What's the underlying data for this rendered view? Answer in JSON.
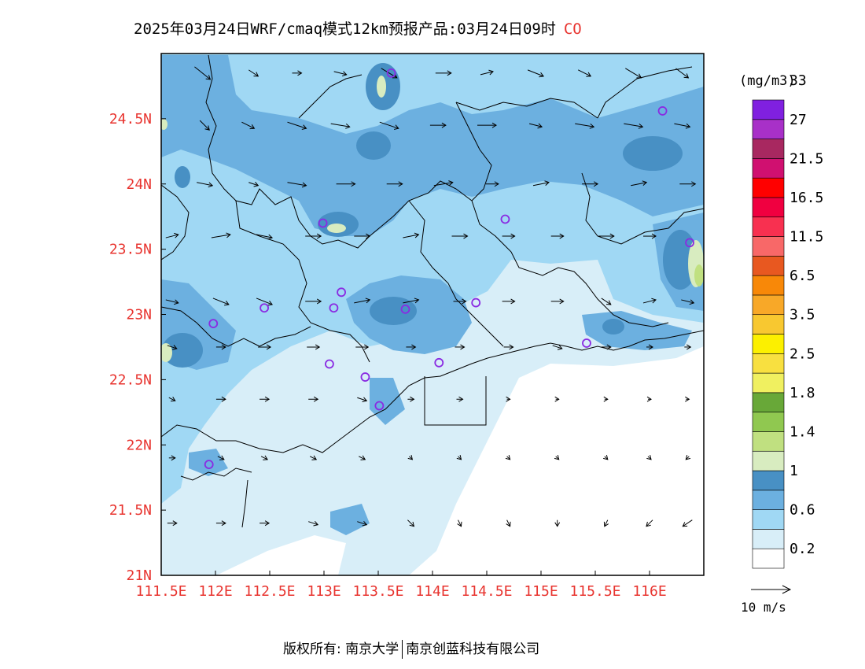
{
  "title": {
    "main": "2025年03月24日WRF/cmaq模式12km预报产品:03月24日09时",
    "species": "CO"
  },
  "map": {
    "lon_range": [
      111.5,
      116.5
    ],
    "lat_range": [
      21.0,
      25.0
    ],
    "lon_ticks": [
      "111.5E",
      "112E",
      "112.5E",
      "113E",
      "113.5E",
      "114E",
      "114.5E",
      "115E",
      "115.5E",
      "116E"
    ],
    "lat_ticks": [
      "21N",
      "21.5N",
      "22N",
      "22.5N",
      "23N",
      "23.5N",
      "24N",
      "24.5N"
    ],
    "tick_color": "#e8342f",
    "sea_color": "#ffffff",
    "stations": [
      [
        113.62,
        24.85
      ],
      [
        116.12,
        24.56
      ],
      [
        112.99,
        23.7
      ],
      [
        114.67,
        23.73
      ],
      [
        116.37,
        23.55
      ],
      [
        113.16,
        23.17
      ],
      [
        112.45,
        23.05
      ],
      [
        113.09,
        23.05
      ],
      [
        113.75,
        23.04
      ],
      [
        114.4,
        23.09
      ],
      [
        111.98,
        22.93
      ],
      [
        115.42,
        22.78
      ],
      [
        113.05,
        22.62
      ],
      [
        113.38,
        22.52
      ],
      [
        114.06,
        22.63
      ],
      [
        113.51,
        22.3
      ],
      [
        111.94,
        21.85
      ]
    ],
    "wind_vectors": [
      {
        "lon": 111.88,
        "lat": 24.85,
        "u": 5,
        "v": -4
      },
      {
        "lon": 112.35,
        "lat": 24.85,
        "u": 3,
        "v": -2
      },
      {
        "lon": 112.75,
        "lat": 24.85,
        "u": 3,
        "v": 0
      },
      {
        "lon": 113.15,
        "lat": 24.85,
        "u": 4,
        "v": -1
      },
      {
        "lon": 113.6,
        "lat": 24.85,
        "u": 5,
        "v": -3
      },
      {
        "lon": 114.1,
        "lat": 24.85,
        "u": 5,
        "v": 0
      },
      {
        "lon": 114.5,
        "lat": 24.85,
        "u": 4,
        "v": 1
      },
      {
        "lon": 114.95,
        "lat": 24.85,
        "u": 5,
        "v": -2
      },
      {
        "lon": 115.4,
        "lat": 24.85,
        "u": 4,
        "v": -2
      },
      {
        "lon": 115.85,
        "lat": 24.85,
        "u": 5,
        "v": -3
      },
      {
        "lon": 116.3,
        "lat": 24.85,
        "u": 4,
        "v": -3
      },
      {
        "lon": 111.9,
        "lat": 24.45,
        "u": 3,
        "v": -3
      },
      {
        "lon": 112.3,
        "lat": 24.45,
        "u": 4,
        "v": -2
      },
      {
        "lon": 112.75,
        "lat": 24.45,
        "u": 6,
        "v": -2
      },
      {
        "lon": 113.15,
        "lat": 24.45,
        "u": 6,
        "v": -1
      },
      {
        "lon": 113.6,
        "lat": 24.45,
        "u": 6,
        "v": -2
      },
      {
        "lon": 114.05,
        "lat": 24.45,
        "u": 5,
        "v": 0
      },
      {
        "lon": 114.5,
        "lat": 24.45,
        "u": 6,
        "v": 0
      },
      {
        "lon": 114.95,
        "lat": 24.45,
        "u": 4,
        "v": -1
      },
      {
        "lon": 115.4,
        "lat": 24.45,
        "u": 6,
        "v": -1
      },
      {
        "lon": 115.85,
        "lat": 24.45,
        "u": 6,
        "v": -1
      },
      {
        "lon": 116.3,
        "lat": 24.45,
        "u": 5,
        "v": -1
      },
      {
        "lon": 111.9,
        "lat": 24.0,
        "u": 5,
        "v": -1
      },
      {
        "lon": 112.35,
        "lat": 24.0,
        "u": 3,
        "v": -1
      },
      {
        "lon": 112.75,
        "lat": 24.0,
        "u": 6,
        "v": -1
      },
      {
        "lon": 113.2,
        "lat": 24.0,
        "u": 6,
        "v": 0
      },
      {
        "lon": 113.65,
        "lat": 24.0,
        "u": 5,
        "v": 0
      },
      {
        "lon": 114.1,
        "lat": 24.0,
        "u": 6,
        "v": 1
      },
      {
        "lon": 114.55,
        "lat": 24.0,
        "u": 4,
        "v": 0
      },
      {
        "lon": 115.0,
        "lat": 24.0,
        "u": 5,
        "v": 1
      },
      {
        "lon": 115.45,
        "lat": 24.0,
        "u": 5,
        "v": 0
      },
      {
        "lon": 115.9,
        "lat": 24.0,
        "u": 5,
        "v": 1
      },
      {
        "lon": 116.35,
        "lat": 24.0,
        "u": 5,
        "v": 0
      },
      {
        "lon": 111.6,
        "lat": 23.6,
        "u": 4,
        "v": 1
      },
      {
        "lon": 112.05,
        "lat": 23.6,
        "u": 6,
        "v": 1
      },
      {
        "lon": 112.45,
        "lat": 23.6,
        "u": 5,
        "v": -1
      },
      {
        "lon": 112.9,
        "lat": 23.6,
        "u": 5,
        "v": 0
      },
      {
        "lon": 113.35,
        "lat": 23.6,
        "u": 5,
        "v": 0
      },
      {
        "lon": 113.8,
        "lat": 23.6,
        "u": 5,
        "v": 1
      },
      {
        "lon": 114.25,
        "lat": 23.6,
        "u": 5,
        "v": 0
      },
      {
        "lon": 114.7,
        "lat": 23.6,
        "u": 4,
        "v": 0
      },
      {
        "lon": 115.15,
        "lat": 23.6,
        "u": 4,
        "v": 0
      },
      {
        "lon": 115.6,
        "lat": 23.6,
        "u": 5,
        "v": 0
      },
      {
        "lon": 116.0,
        "lat": 23.6,
        "u": 4,
        "v": 0
      },
      {
        "lon": 111.6,
        "lat": 23.1,
        "u": 4,
        "v": -1
      },
      {
        "lon": 112.05,
        "lat": 23.1,
        "u": 5,
        "v": -2
      },
      {
        "lon": 112.45,
        "lat": 23.1,
        "u": 5,
        "v": -2
      },
      {
        "lon": 112.9,
        "lat": 23.1,
        "u": 5,
        "v": 0
      },
      {
        "lon": 113.35,
        "lat": 23.1,
        "u": 5,
        "v": 1
      },
      {
        "lon": 113.8,
        "lat": 23.1,
        "u": 5,
        "v": 1
      },
      {
        "lon": 114.25,
        "lat": 23.1,
        "u": 4,
        "v": 0
      },
      {
        "lon": 114.7,
        "lat": 23.1,
        "u": 4,
        "v": 0
      },
      {
        "lon": 115.15,
        "lat": 23.1,
        "u": 4,
        "v": 0
      },
      {
        "lon": 115.6,
        "lat": 23.1,
        "u": 3,
        "v": -2
      },
      {
        "lon": 116.0,
        "lat": 23.1,
        "u": 4,
        "v": 1
      },
      {
        "lon": 116.35,
        "lat": 23.1,
        "u": 4,
        "v": -1
      },
      {
        "lon": 111.6,
        "lat": 22.75,
        "u": 3,
        "v": -1
      },
      {
        "lon": 112.05,
        "lat": 22.75,
        "u": 3,
        "v": 0
      },
      {
        "lon": 112.45,
        "lat": 22.75,
        "u": 4,
        "v": 0
      },
      {
        "lon": 112.9,
        "lat": 22.75,
        "u": 4,
        "v": 0
      },
      {
        "lon": 113.35,
        "lat": 22.75,
        "u": 4,
        "v": 0
      },
      {
        "lon": 113.8,
        "lat": 22.75,
        "u": 3,
        "v": 0
      },
      {
        "lon": 114.25,
        "lat": 22.75,
        "u": 3,
        "v": 0
      },
      {
        "lon": 114.7,
        "lat": 22.75,
        "u": 3,
        "v": 0
      },
      {
        "lon": 115.15,
        "lat": 22.75,
        "u": 3,
        "v": -1
      },
      {
        "lon": 115.6,
        "lat": 22.75,
        "u": 3,
        "v": 0
      },
      {
        "lon": 116.0,
        "lat": 22.75,
        "u": 2,
        "v": 0
      },
      {
        "lon": 116.35,
        "lat": 22.75,
        "u": 2,
        "v": 0
      },
      {
        "lon": 111.6,
        "lat": 22.35,
        "u": 2,
        "v": -1
      },
      {
        "lon": 112.05,
        "lat": 22.35,
        "u": 3,
        "v": 0
      },
      {
        "lon": 112.45,
        "lat": 22.35,
        "u": 3,
        "v": 0
      },
      {
        "lon": 112.9,
        "lat": 22.35,
        "u": 3,
        "v": 0
      },
      {
        "lon": 113.35,
        "lat": 22.35,
        "u": 3,
        "v": -1
      },
      {
        "lon": 113.8,
        "lat": 22.35,
        "u": 2,
        "v": 0
      },
      {
        "lon": 114.25,
        "lat": 22.35,
        "u": 2,
        "v": 0
      },
      {
        "lon": 114.7,
        "lat": 22.35,
        "u": 1,
        "v": 0
      },
      {
        "lon": 115.15,
        "lat": 22.35,
        "u": 1,
        "v": 0
      },
      {
        "lon": 115.6,
        "lat": 22.35,
        "u": 1,
        "v": 0
      },
      {
        "lon": 116.0,
        "lat": 22.35,
        "u": 1,
        "v": 0
      },
      {
        "lon": 116.35,
        "lat": 22.35,
        "u": 1,
        "v": 0
      },
      {
        "lon": 111.6,
        "lat": 21.9,
        "u": 2,
        "v": 0
      },
      {
        "lon": 112.05,
        "lat": 21.9,
        "u": 2,
        "v": -1
      },
      {
        "lon": 112.45,
        "lat": 21.9,
        "u": 2,
        "v": -1
      },
      {
        "lon": 112.9,
        "lat": 21.9,
        "u": 2,
        "v": -1
      },
      {
        "lon": 113.35,
        "lat": 21.9,
        "u": 2,
        "v": -1
      },
      {
        "lon": 113.8,
        "lat": 21.9,
        "u": 1,
        "v": -1
      },
      {
        "lon": 114.25,
        "lat": 21.9,
        "u": 1,
        "v": -1
      },
      {
        "lon": 114.7,
        "lat": 21.9,
        "u": 1,
        "v": -1
      },
      {
        "lon": 115.15,
        "lat": 21.9,
        "u": 1,
        "v": -1
      },
      {
        "lon": 115.6,
        "lat": 21.9,
        "u": 1,
        "v": -1
      },
      {
        "lon": 116.0,
        "lat": 21.9,
        "u": 1,
        "v": -1
      },
      {
        "lon": 116.35,
        "lat": 21.9,
        "u": -1,
        "v": -1
      },
      {
        "lon": 111.6,
        "lat": 21.4,
        "u": 3,
        "v": 0
      },
      {
        "lon": 112.05,
        "lat": 21.4,
        "u": 3,
        "v": 0
      },
      {
        "lon": 112.45,
        "lat": 21.4,
        "u": 3,
        "v": 0
      },
      {
        "lon": 112.9,
        "lat": 21.4,
        "u": 3,
        "v": -1
      },
      {
        "lon": 113.35,
        "lat": 21.4,
        "u": 3,
        "v": -1
      },
      {
        "lon": 113.8,
        "lat": 21.4,
        "u": 2,
        "v": -2
      },
      {
        "lon": 114.25,
        "lat": 21.4,
        "u": 1,
        "v": -2
      },
      {
        "lon": 114.7,
        "lat": 21.4,
        "u": 1,
        "v": -2
      },
      {
        "lon": 115.15,
        "lat": 21.4,
        "u": 0,
        "v": -2
      },
      {
        "lon": 115.6,
        "lat": 21.4,
        "u": -1,
        "v": -2
      },
      {
        "lon": 116.0,
        "lat": 21.4,
        "u": -2,
        "v": -2
      },
      {
        "lon": 116.35,
        "lat": 21.4,
        "u": -3,
        "v": -2
      }
    ]
  },
  "colorbar": {
    "unit": "(mg/m3)",
    "colors": [
      "#ffffff",
      "#d8eef8",
      "#a0d8f4",
      "#6cb0e0",
      "#4890c4",
      "#d8ecc0",
      "#c0e080",
      "#90c850",
      "#68a838",
      "#f0f060",
      "#f8e040",
      "#fcf000",
      "#f8c830",
      "#f8a828",
      "#f88808",
      "#e85820",
      "#f86868",
      "#f83050",
      "#f00040",
      "#ff0000",
      "#d01070",
      "#a82860",
      "#a830c8",
      "#8020e0"
    ],
    "labels": [
      "0.2",
      "0.6",
      "1",
      "1.4",
      "1.8",
      "2.5",
      "3.5",
      "6.5",
      "11.5",
      "16.5",
      "21.5",
      "27",
      "33"
    ]
  },
  "wind_legend": {
    "label": "10 m/s"
  },
  "footer": {
    "left": "版权所有: 南京大学",
    "right": "南京创蓝科技有限公司"
  }
}
